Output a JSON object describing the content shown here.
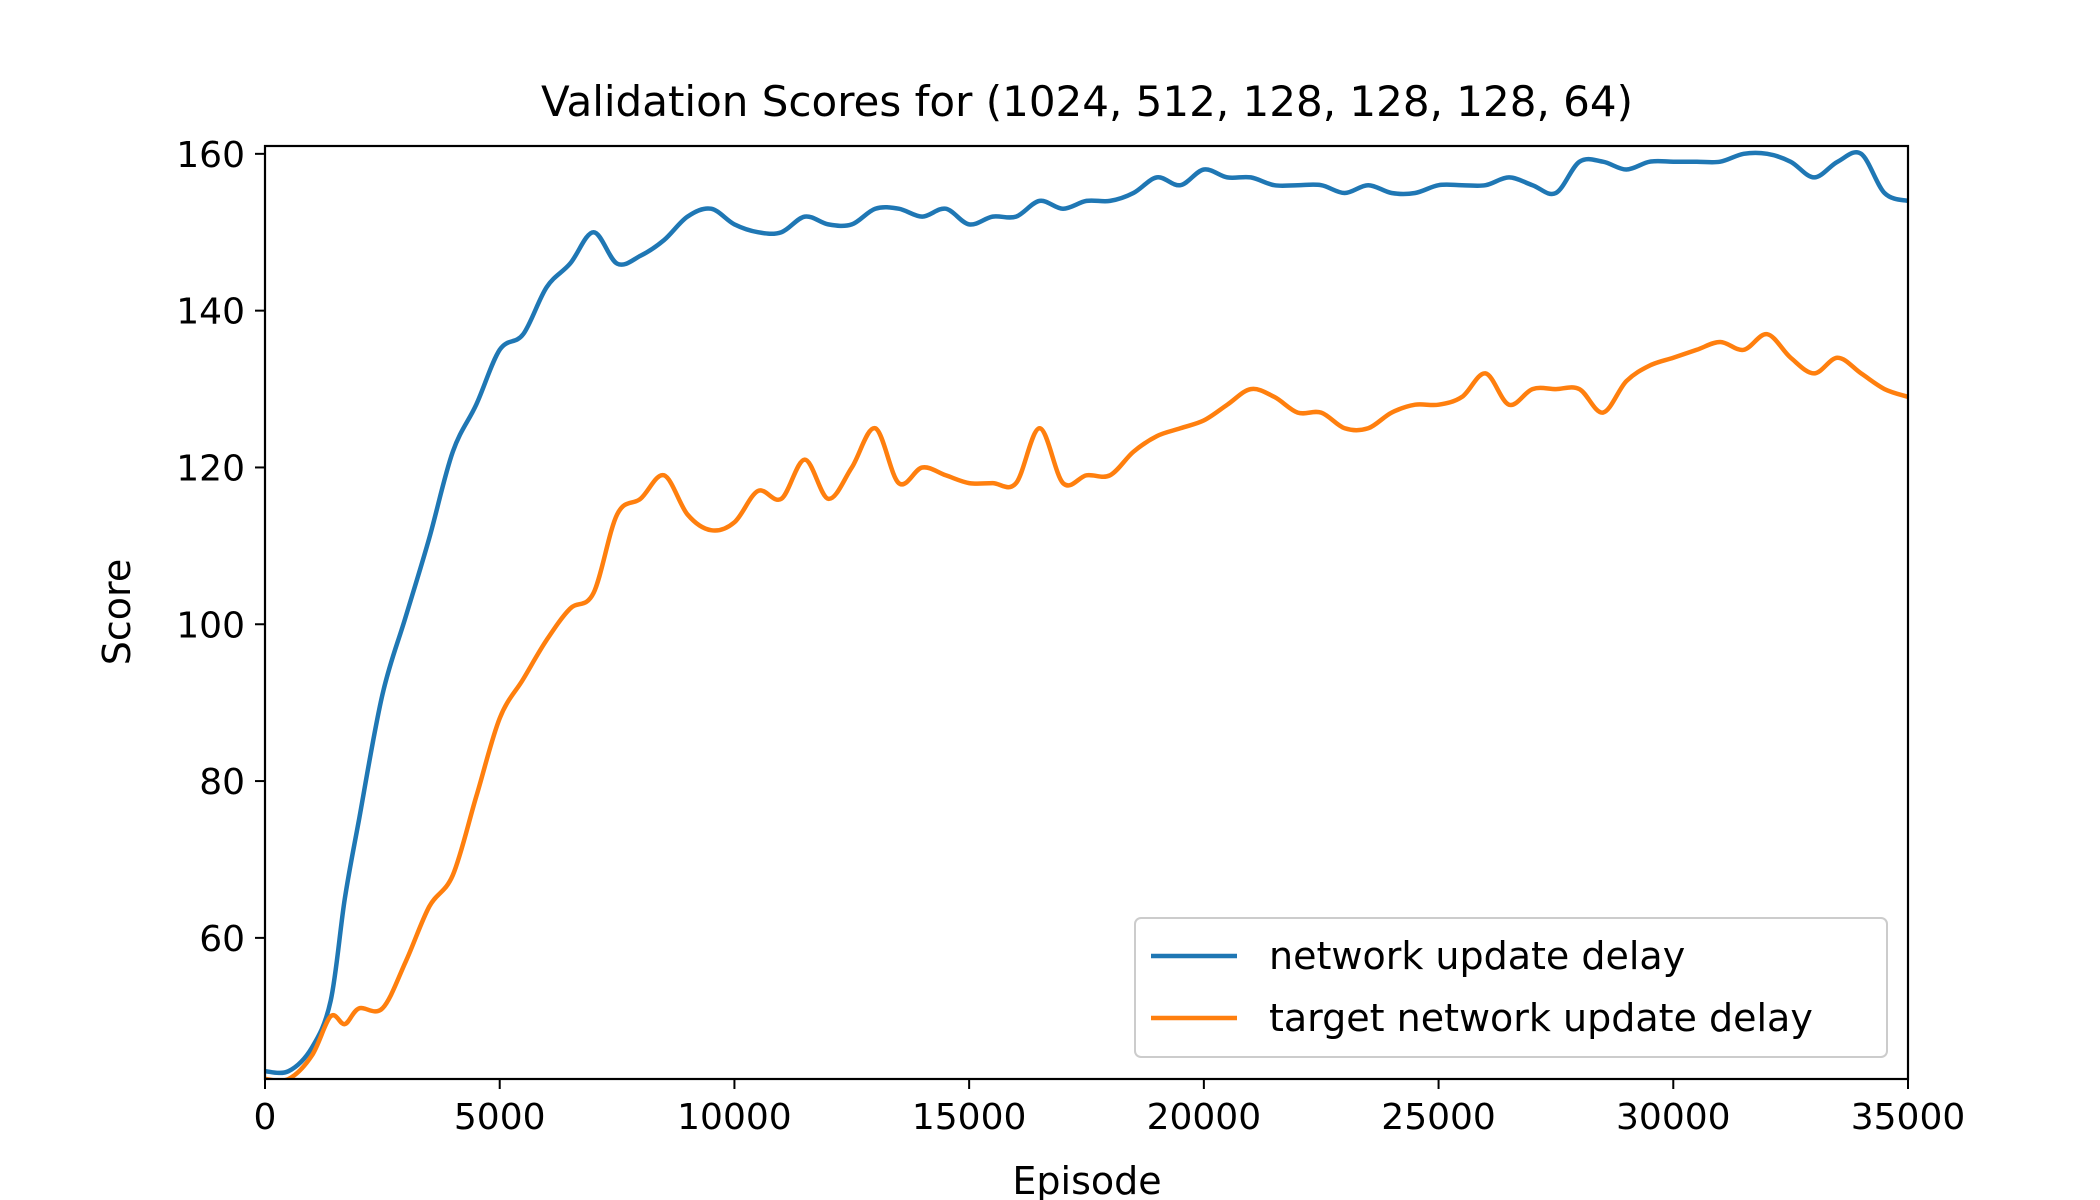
{
  "chart_data": {
    "type": "line",
    "title": "Validation Scores for (1024, 512, 128, 128, 128, 64)",
    "xlabel": "Episode",
    "ylabel": "Score",
    "xlim": [
      0,
      35000
    ],
    "ylim": [
      42,
      161
    ],
    "xticks": [
      0,
      5000,
      10000,
      15000,
      20000,
      25000,
      30000,
      35000
    ],
    "yticks": [
      60,
      80,
      100,
      120,
      140,
      160
    ],
    "grid": false,
    "legend_position": "lower-right",
    "series": [
      {
        "name": "network update delay",
        "color": "#1f77b4",
        "x": [
          0,
          500,
          1000,
          1400,
          1700,
          2000,
          2500,
          3000,
          3500,
          4000,
          4500,
          5000,
          5500,
          6000,
          6500,
          7000,
          7500,
          8000,
          8500,
          9000,
          9500,
          10000,
          10500,
          11000,
          11500,
          12000,
          12500,
          13000,
          13500,
          14000,
          14500,
          15000,
          15500,
          16000,
          16500,
          17000,
          17500,
          18000,
          18500,
          19000,
          19500,
          20000,
          20500,
          21000,
          21500,
          22000,
          22500,
          23000,
          23500,
          24000,
          24500,
          25000,
          25500,
          26000,
          26500,
          27000,
          27500,
          28000,
          28500,
          29000,
          29500,
          30000,
          30500,
          31000,
          31500,
          32000,
          32500,
          33000,
          33500,
          34000,
          34500,
          35000
        ],
        "y": [
          43,
          43,
          46,
          52,
          65,
          75,
          91,
          101,
          111,
          122,
          128,
          135,
          137,
          143,
          146,
          150,
          146,
          147,
          149,
          152,
          153,
          151,
          150,
          150,
          152,
          151,
          151,
          153,
          153,
          152,
          153,
          151,
          152,
          152,
          154,
          153,
          154,
          154,
          155,
          157,
          156,
          158,
          157,
          157,
          156,
          156,
          156,
          155,
          156,
          155,
          155,
          156,
          156,
          156,
          157,
          156,
          155,
          159,
          159,
          158,
          159,
          159,
          159,
          159,
          160,
          160,
          159,
          157,
          159,
          160,
          155,
          154
        ]
      },
      {
        "name": "target network update delay",
        "color": "#ff7f0e",
        "x": [
          0,
          500,
          1000,
          1400,
          1700,
          2000,
          2500,
          3000,
          3500,
          4000,
          4500,
          5000,
          5500,
          6000,
          6500,
          7000,
          7500,
          8000,
          8500,
          9000,
          9500,
          10000,
          10500,
          11000,
          11500,
          12000,
          12500,
          13000,
          13500,
          14000,
          14500,
          15000,
          15500,
          16000,
          16500,
          17000,
          17500,
          18000,
          18500,
          19000,
          19500,
          20000,
          20500,
          21000,
          21500,
          22000,
          22500,
          23000,
          23500,
          24000,
          24500,
          25000,
          25500,
          26000,
          26500,
          27000,
          27500,
          28000,
          28500,
          29000,
          29500,
          30000,
          30500,
          31000,
          31500,
          32000,
          32500,
          33000,
          33500,
          34000,
          34500,
          35000
        ],
        "y": [
          42,
          42,
          45,
          50,
          49,
          51,
          51,
          57,
          64,
          68,
          78,
          88,
          93,
          98,
          102,
          104,
          114,
          116,
          119,
          114,
          112,
          113,
          117,
          116,
          121,
          116,
          120,
          125,
          118,
          120,
          119,
          118,
          118,
          118,
          125,
          118,
          119,
          119,
          122,
          124,
          125,
          126,
          128,
          130,
          129,
          127,
          127,
          125,
          125,
          127,
          128,
          128,
          129,
          132,
          128,
          130,
          130,
          130,
          127,
          131,
          133,
          134,
          135,
          136,
          135,
          137,
          134,
          132,
          134,
          132,
          130,
          129
        ]
      }
    ]
  }
}
